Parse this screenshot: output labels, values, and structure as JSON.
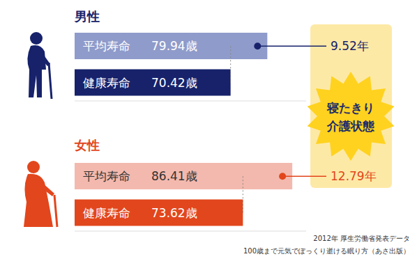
{
  "chart_data": [
    {
      "type": "bar",
      "orientation": "horizontal",
      "title": "男性",
      "categories": [
        "平均寿命",
        "健康寿命"
      ],
      "values": [
        79.94,
        70.42
      ],
      "value_labels": [
        "79.94歳",
        "70.42歳"
      ],
      "colors": [
        "#8f9bca",
        "#17226b"
      ],
      "xlim": [
        30,
        90
      ],
      "tick_labels": false,
      "data_labels": true,
      "gap": {
        "value": 9.52,
        "label": "9.52年"
      }
    },
    {
      "type": "bar",
      "orientation": "horizontal",
      "title": "女性",
      "categories": [
        "平均寿命",
        "健康寿命"
      ],
      "values": [
        86.41,
        73.62
      ],
      "value_labels": [
        "86.41歳",
        "73.62歳"
      ],
      "colors": [
        "#f3b9ae",
        "#e2461c"
      ],
      "xlim": [
        30,
        90
      ],
      "tick_labels": false,
      "data_labels": true,
      "gap": {
        "value": 12.79,
        "label": "12.79年"
      }
    }
  ],
  "annotation": [
    "寝たきり",
    "介護状態"
  ],
  "source": [
    "2012年 厚生労働省発表データ",
    "100歳まで元気でぽっくり逝ける眠り方（あさ出版）"
  ]
}
